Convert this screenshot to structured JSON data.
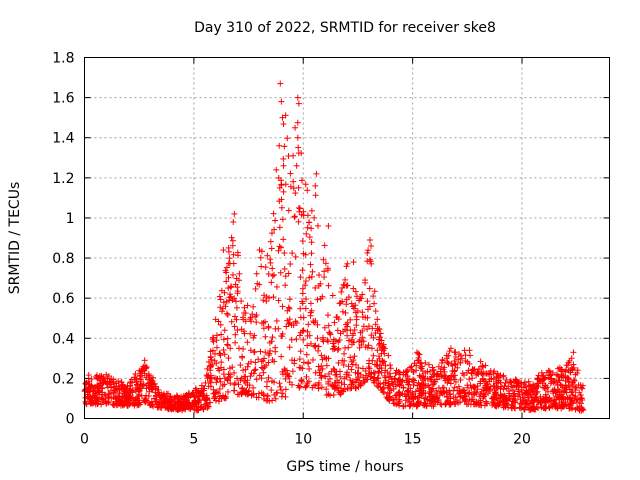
{
  "chart_data": {
    "type": "scatter",
    "title": "Day 310 of 2022, SRMTID for receiver ske8",
    "xlabel": "GPS time / hours",
    "ylabel": "SRMTID / TECUs",
    "xlim": [
      0,
      24
    ],
    "ylim": [
      0,
      1.8
    ],
    "xticks": [
      0,
      5,
      10,
      15,
      20
    ],
    "yticks": [
      0,
      0.2,
      0.4,
      0.6,
      0.8,
      1,
      1.2,
      1.4,
      1.6,
      1.8
    ],
    "xtick_labels": [
      "0",
      "5",
      "10",
      "15",
      "20"
    ],
    "ytick_labels": [
      "0",
      "0.2",
      "0.4",
      "0.6",
      "0.8",
      "1",
      "1.2",
      "1.4",
      "1.6",
      "1.8"
    ],
    "grid": true,
    "marker": "+",
    "marker_color": "#ff0000",
    "series": [
      {
        "name": "SRMTID",
        "envelope": [
          {
            "x": 0.0,
            "low": 0.07,
            "high": 0.25
          },
          {
            "x": 1.0,
            "low": 0.07,
            "high": 0.22
          },
          {
            "x": 2.0,
            "low": 0.06,
            "high": 0.17
          },
          {
            "x": 2.7,
            "low": 0.07,
            "high": 0.29
          },
          {
            "x": 3.5,
            "low": 0.05,
            "high": 0.13
          },
          {
            "x": 4.5,
            "low": 0.04,
            "high": 0.11
          },
          {
            "x": 5.5,
            "low": 0.04,
            "high": 0.18
          },
          {
            "x": 6.0,
            "low": 0.08,
            "high": 0.5
          },
          {
            "x": 6.5,
            "low": 0.1,
            "high": 0.8
          },
          {
            "x": 6.8,
            "low": 0.12,
            "high": 1.02
          },
          {
            "x": 7.5,
            "low": 0.12,
            "high": 0.55
          },
          {
            "x": 8.0,
            "low": 0.1,
            "high": 0.84
          },
          {
            "x": 8.5,
            "low": 0.08,
            "high": 0.9
          },
          {
            "x": 9.0,
            "low": 0.1,
            "high": 1.67
          },
          {
            "x": 9.5,
            "low": 0.12,
            "high": 1.4
          },
          {
            "x": 9.8,
            "low": 0.15,
            "high": 1.61
          },
          {
            "x": 10.3,
            "low": 0.15,
            "high": 1.0
          },
          {
            "x": 10.6,
            "low": 0.15,
            "high": 1.22
          },
          {
            "x": 11.0,
            "low": 0.12,
            "high": 0.9
          },
          {
            "x": 11.5,
            "low": 0.1,
            "high": 0.5
          },
          {
            "x": 12.0,
            "low": 0.15,
            "high": 0.78
          },
          {
            "x": 12.5,
            "low": 0.15,
            "high": 0.6
          },
          {
            "x": 13.0,
            "low": 0.2,
            "high": 0.89
          },
          {
            "x": 13.5,
            "low": 0.15,
            "high": 0.45
          },
          {
            "x": 14.0,
            "low": 0.08,
            "high": 0.28
          },
          {
            "x": 14.5,
            "low": 0.06,
            "high": 0.22
          },
          {
            "x": 15.3,
            "low": 0.06,
            "high": 0.33
          },
          {
            "x": 16.0,
            "low": 0.06,
            "high": 0.25
          },
          {
            "x": 16.8,
            "low": 0.07,
            "high": 0.35
          },
          {
            "x": 17.5,
            "low": 0.07,
            "high": 0.34
          },
          {
            "x": 18.5,
            "low": 0.06,
            "high": 0.25
          },
          {
            "x": 19.5,
            "low": 0.05,
            "high": 0.2
          },
          {
            "x": 20.5,
            "low": 0.04,
            "high": 0.18
          },
          {
            "x": 21.0,
            "low": 0.05,
            "high": 0.25
          },
          {
            "x": 22.0,
            "low": 0.05,
            "high": 0.26
          },
          {
            "x": 22.3,
            "low": 0.05,
            "high": 0.33
          },
          {
            "x": 22.8,
            "low": 0.03,
            "high": 0.17
          }
        ],
        "peaks": [
          {
            "x": 8.95,
            "y": 1.67
          },
          {
            "x": 9.0,
            "y": 1.58
          },
          {
            "x": 9.05,
            "y": 1.5
          },
          {
            "x": 8.9,
            "y": 1.36
          },
          {
            "x": 9.1,
            "y": 1.26
          },
          {
            "x": 9.1,
            "y": 1.13
          },
          {
            "x": 9.75,
            "y": 1.6
          },
          {
            "x": 9.8,
            "y": 1.57
          },
          {
            "x": 9.75,
            "y": 1.4
          },
          {
            "x": 9.7,
            "y": 1.26
          },
          {
            "x": 9.8,
            "y": 1.05
          },
          {
            "x": 10.6,
            "y": 1.22
          },
          {
            "x": 10.55,
            "y": 1.16
          },
          {
            "x": 10.5,
            "y": 1.0
          },
          {
            "x": 6.85,
            "y": 1.02
          },
          {
            "x": 6.8,
            "y": 0.98
          },
          {
            "x": 6.35,
            "y": 0.84
          },
          {
            "x": 8.0,
            "y": 0.84
          },
          {
            "x": 13.05,
            "y": 0.89
          },
          {
            "x": 13.1,
            "y": 0.86
          },
          {
            "x": 12.3,
            "y": 0.78
          },
          {
            "x": 11.15,
            "y": 0.96
          },
          {
            "x": 2.75,
            "y": 0.29
          },
          {
            "x": 15.2,
            "y": 0.33
          },
          {
            "x": 16.75,
            "y": 0.35
          },
          {
            "x": 17.6,
            "y": 0.34
          },
          {
            "x": 22.35,
            "y": 0.33
          }
        ]
      }
    ]
  }
}
